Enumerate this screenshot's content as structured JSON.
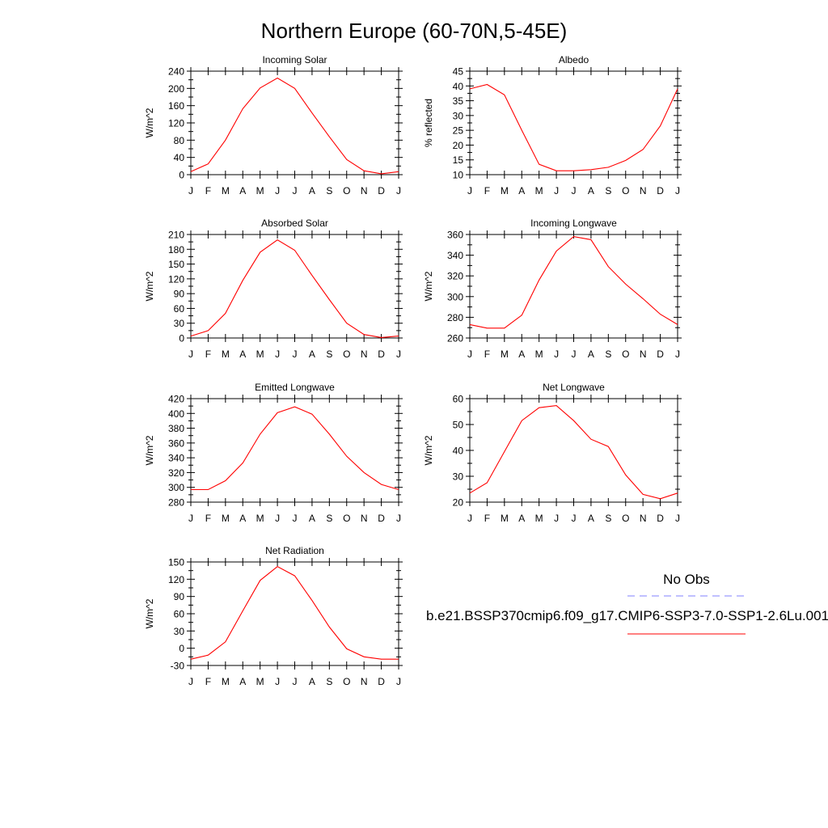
{
  "title": "Northern Europe (60-70N,5-45E)",
  "colors": {
    "model": "#ff0000",
    "obs": "#8080ff",
    "axis": "#000000"
  },
  "legend": {
    "obs_label": "No Obs",
    "model_label": "b.e21.BSSP370cmip6.f09_g17.CMIP6-SSP3-7.0-SSP1-2.6Lu.001"
  },
  "months": [
    "J",
    "F",
    "M",
    "A",
    "M",
    "J",
    "J",
    "A",
    "S",
    "O",
    "N",
    "D",
    "J"
  ],
  "chart_data": [
    {
      "type": "line",
      "title": "Incoming Solar",
      "ylabel": "W/m^2",
      "ylim": [
        0,
        240
      ],
      "yticks": [
        0,
        40,
        80,
        120,
        160,
        200,
        240
      ],
      "series": [
        {
          "values": [
            7,
            25,
            80,
            153,
            201,
            224,
            200,
            143,
            88,
            35,
            9,
            2,
            7
          ]
        }
      ]
    },
    {
      "type": "line",
      "title": "Albedo",
      "ylabel": "% reflected",
      "ylim": [
        10,
        45
      ],
      "yticks": [
        10,
        15,
        20,
        25,
        30,
        35,
        40,
        45
      ],
      "series": [
        {
          "values": [
            39,
            40.5,
            37,
            25,
            13.5,
            11.3,
            11.3,
            11.7,
            12.5,
            14.8,
            18.5,
            26.5,
            39
          ]
        }
      ]
    },
    {
      "type": "line",
      "title": "Absorbed Solar",
      "ylabel": "W/m^2",
      "ylim": [
        0,
        210
      ],
      "yticks": [
        0,
        30,
        60,
        90,
        120,
        150,
        180,
        210
      ],
      "series": [
        {
          "values": [
            4,
            15,
            50,
            117,
            174,
            199,
            178,
            127,
            78,
            30,
            7,
            1,
            4
          ]
        }
      ]
    },
    {
      "type": "line",
      "title": "Incoming Longwave",
      "ylabel": "W/m^2",
      "ylim": [
        260,
        360
      ],
      "yticks": [
        260,
        280,
        300,
        320,
        340,
        360
      ],
      "series": [
        {
          "values": [
            273,
            269.5,
            269.5,
            282,
            316,
            344,
            358,
            355,
            329,
            312,
            298,
            283,
            273
          ]
        }
      ]
    },
    {
      "type": "line",
      "title": "Emitted Longwave",
      "ylabel": "W/m^2",
      "ylim": [
        280,
        420
      ],
      "yticks": [
        280,
        300,
        320,
        340,
        360,
        380,
        400,
        420
      ],
      "series": [
        {
          "values": [
            297,
            297,
            309,
            333,
            372,
            401,
            409,
            399,
            372,
            342,
            320,
            304,
            297
          ]
        }
      ]
    },
    {
      "type": "line",
      "title": "Net Longwave",
      "ylabel": "W/m^2",
      "ylim": [
        20,
        60
      ],
      "yticks": [
        20,
        30,
        40,
        50,
        60
      ],
      "series": [
        {
          "values": [
            23.5,
            27.5,
            39.5,
            51.5,
            56.5,
            57.3,
            51.5,
            44.3,
            41.5,
            30.5,
            23,
            21.3,
            23.5
          ]
        }
      ]
    },
    {
      "type": "line",
      "title": "Net Radiation",
      "ylabel": "W/m^2",
      "ylim": [
        -30,
        150
      ],
      "yticks": [
        -30,
        0,
        30,
        60,
        90,
        120,
        150
      ],
      "series": [
        {
          "values": [
            -19,
            -12,
            11,
            65,
            118,
            142,
            126,
            83,
            37,
            -1,
            -15,
            -19,
            -19
          ]
        }
      ]
    }
  ]
}
